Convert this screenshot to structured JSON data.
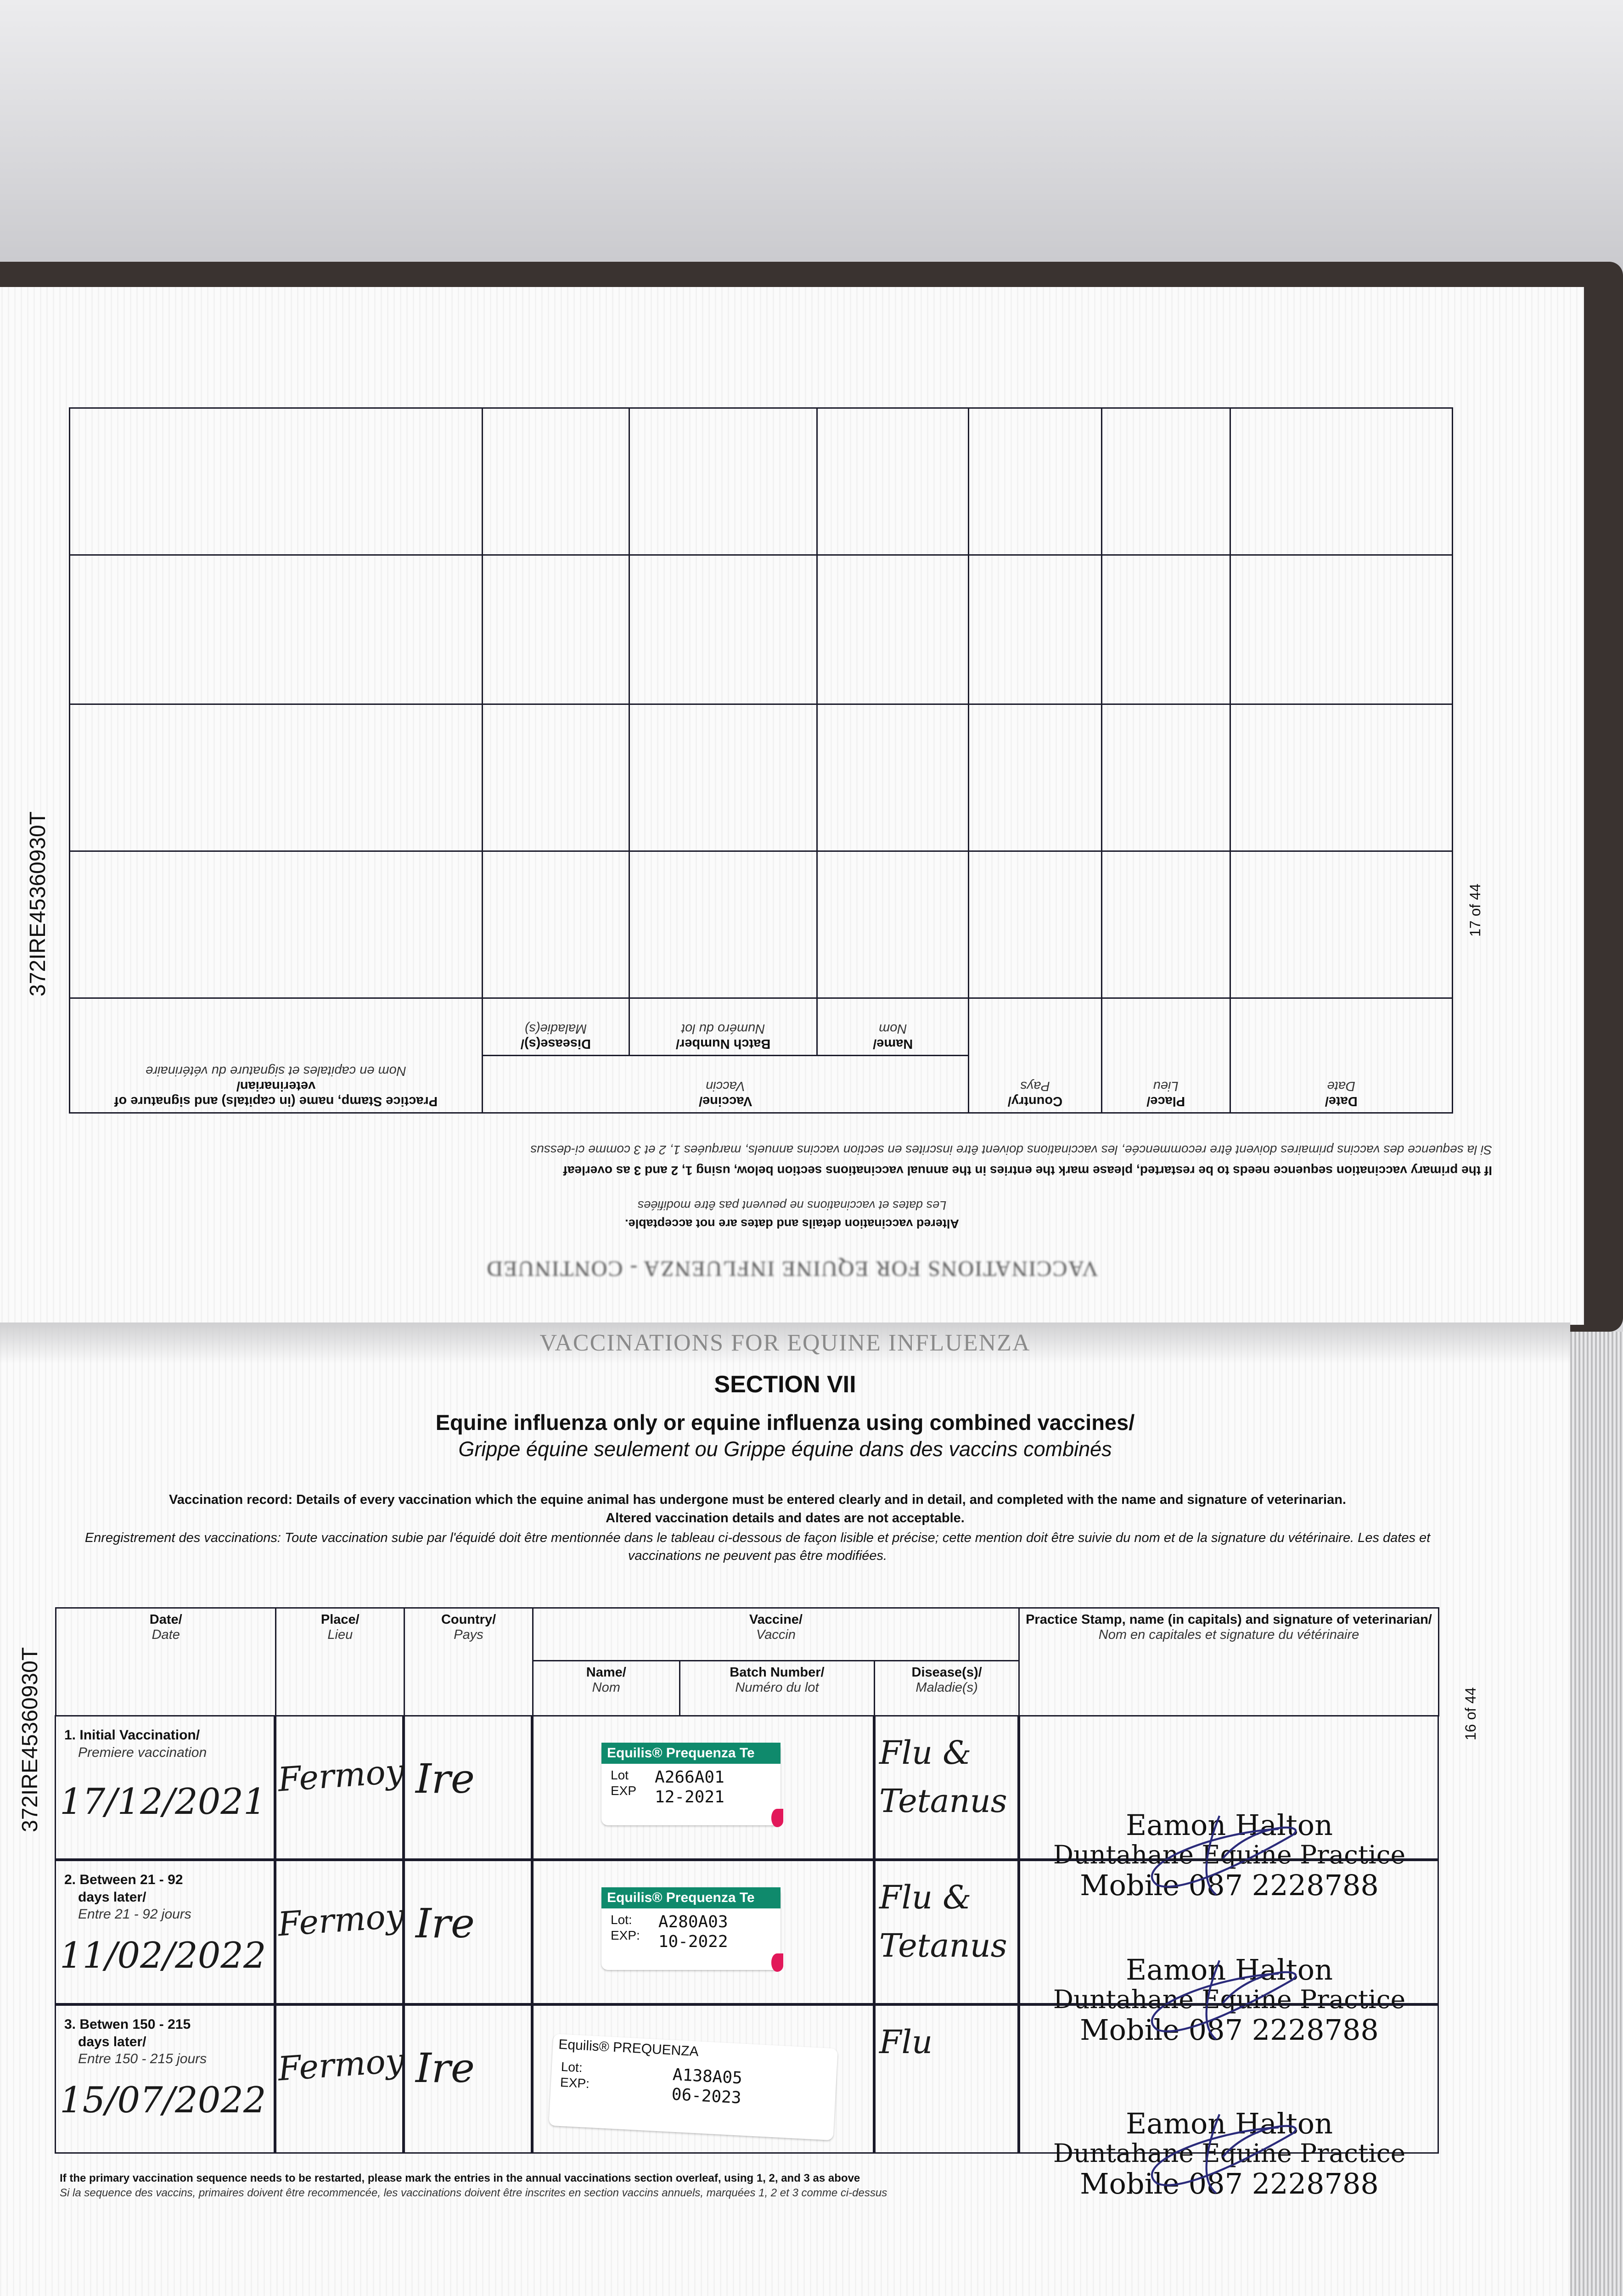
{
  "document_id": "372IRE45360930T",
  "top_page": {
    "page_number": "17 of 44",
    "running_header": "VACCINATIONS FOR EQUINE INFLUENZA - CONTINUED",
    "notice_en": "Altered vaccination details and dates are not acceptable.",
    "notice_fr": "Les dates et vaccinations ne peuvent pas être modifiées",
    "restart_en": "If the primary vaccination sequence needs to be restarted, please mark the entries in the annual vaccinations section below, using 1, 2 and 3 as overleaf",
    "restart_fr": "Si la sequence des vaccins primaires doivent être recommencée, les vaccinations doivent être inscrites en section vaccins annuels, marquées 1, 2 et 3 comme ci-dessus",
    "headers": {
      "date": "Date/",
      "date_fr": "Date",
      "place": "Place/",
      "place_fr": "Lieu",
      "country": "Country/",
      "country_fr": "Pays",
      "vaccine": "Vaccine/",
      "vaccine_fr": "Vaccin",
      "name": "Name/",
      "name_fr": "Nom",
      "batch": "Batch Number/",
      "batch_fr": "Numéro du lot",
      "disease": "Disease(s)/",
      "disease_fr": "Maladie(s)",
      "stamp": "Practice Stamp, name (in capitals) and signature of veterinarian/",
      "stamp_fr": "Nom en capitales et signature du vétérinaire"
    }
  },
  "bottom_page": {
    "page_number": "16 of 44",
    "running_header": "VACCINATIONS FOR EQUINE INFLUENZA",
    "section": "SECTION VII",
    "title_en": "Equine influenza only or equine influenza using combined vaccines/",
    "title_fr": "Grippe équine seulement ou Grippe équine dans des vaccins combinés",
    "intro_en": "Vaccination record: Details of every vaccination which the equine animal has undergone must be entered clearly and in detail, and completed with the name and signature of veterinarian.",
    "intro_en2": "Altered vaccination details and dates are not acceptable.",
    "intro_fr": "Enregistrement des vaccinations: Toute vaccination subie par l'équidé doit être mentionnée dans le tableau ci-dessous de façon lisible et précise; cette mention doit être suivie du nom et de la signature du vétérinaire. Les dates et vaccinations ne peuvent pas être modifiées.",
    "headers": {
      "date": "Date/",
      "date_fr": "Date",
      "place": "Place/",
      "place_fr": "Lieu",
      "country": "Country/",
      "country_fr": "Pays",
      "vaccine": "Vaccine/",
      "vaccine_fr": "Vaccin",
      "name": "Name/",
      "name_fr": "Nom",
      "batch": "Batch Number/",
      "batch_fr": "Numéro du lot",
      "disease": "Disease(s)/",
      "disease_fr": "Maladie(s)",
      "stamp": "Practice Stamp, name (in capitals) and signature of veterinarian/",
      "stamp_fr": "Nom en capitales et signature du vétérinaire"
    },
    "rows": [
      {
        "label": "1. Initial Vaccination/",
        "label2": "",
        "label_fr": "Premiere vaccination",
        "date": "17/12/2021",
        "place": "Fermoy",
        "country": "Ire",
        "sticker": {
          "brand": "Equilis® Prequenza Te",
          "lot_label": "Lot",
          "exp_label": "EXP",
          "lot": "A266A01",
          "exp": "12-2021"
        },
        "disease": "Flu & Tetanus",
        "stamp": {
          "name": "Eamon Halton",
          "practice": "Duntahane Equine Practice",
          "phone": "Mobile 087 2228788"
        }
      },
      {
        "label": "2. Between 21 - 92",
        "label2": "days later/",
        "label_fr": "Entre 21 - 92 jours",
        "date": "11/02/2022",
        "place": "Fermoy",
        "country": "Ire",
        "sticker": {
          "brand": "Equilis® Prequenza Te",
          "lot_label": "Lot:",
          "exp_label": "EXP:",
          "lot": "A280A03",
          "exp": "10-2022"
        },
        "disease": "Flu & Tetanus",
        "stamp": {
          "name": "Eamon Halton",
          "practice": "Duntahane Equine Practice",
          "phone": "Mobile 087 2228788"
        }
      },
      {
        "label": "3. Betwen 150 - 215",
        "label2": "days later/",
        "label_fr": "Entre 150 - 215 jours",
        "date": "15/07/2022",
        "place": "Fermoy",
        "country": "Ire",
        "sticker": {
          "brand": "Equilis® PREQUENZA",
          "lot_label": "Lot:",
          "exp_label": "EXP:",
          "lot": "A138A05",
          "exp": "06-2023"
        },
        "disease": "Flu",
        "stamp": {
          "name": "Eamon Halton",
          "practice": "Duntahane Equine Practice",
          "phone": "Mobile 087 2228788"
        }
      }
    ],
    "footer_en": "If the primary vaccination sequence needs to be restarted, please mark the entries in the annual vaccinations section overleaf, using 1, 2, and 3 as above",
    "footer_fr": "Si la sequence des vaccins, primaires doivent être recommencée, les vaccinations doivent être inscrites en section vaccins annuels, marquées 1, 2 et 3 comme ci-dessus"
  },
  "colors": {
    "sticker_green": "#0f8a6c",
    "sticker_pink": "#e2185a",
    "signature_ink": "#2a2a7a"
  }
}
